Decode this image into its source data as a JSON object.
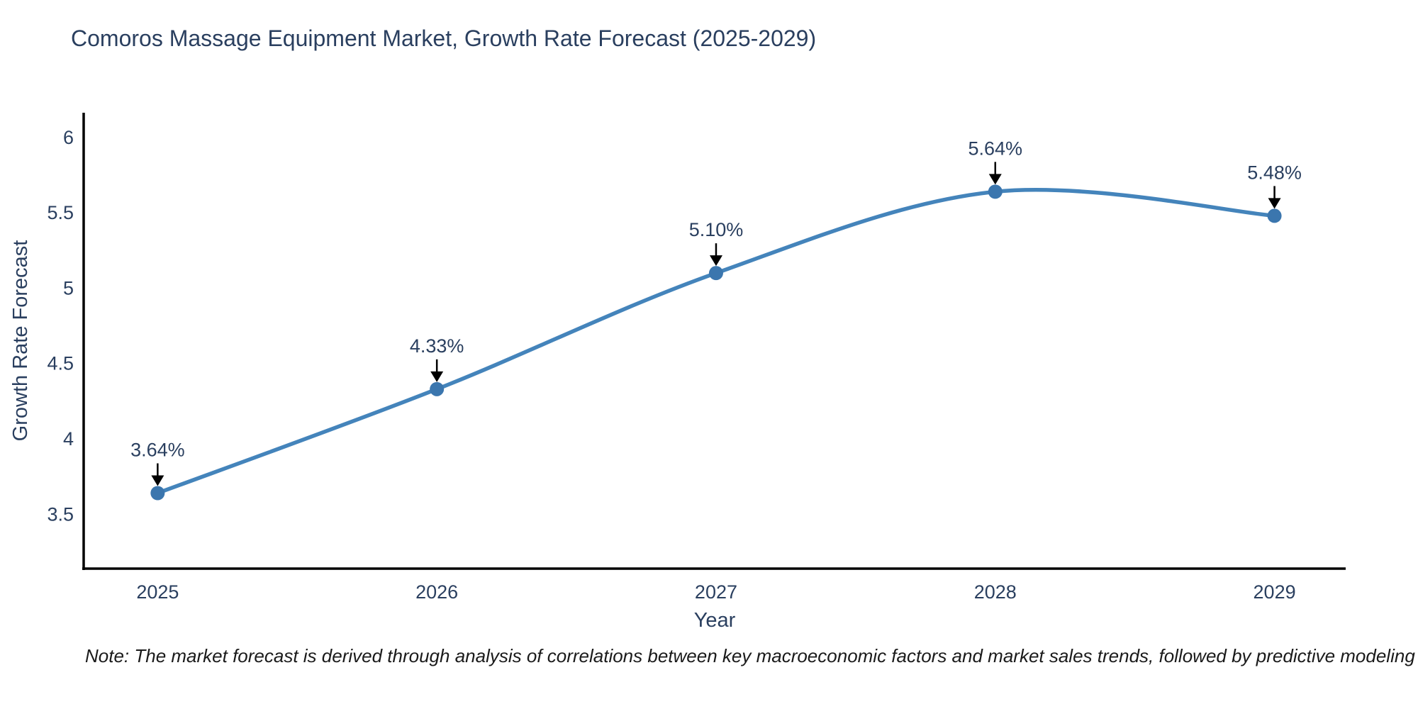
{
  "chart": {
    "title": "Comoros Massage Equipment Market, Growth Rate Forecast (2025-2029)"
  },
  "note": {
    "text": "Note: The market forecast is derived through analysis of correlations between key macroeconomic factors and market sales trends, followed by predictive modeling to project future sales"
  },
  "chart_data": {
    "type": "line",
    "title": "Comoros Massage Equipment Market, Growth Rate Forecast (2025-2029)",
    "x": [
      2025,
      2026,
      2027,
      2028,
      2029
    ],
    "x_tick_labels": [
      "2025",
      "2026",
      "2027",
      "2028",
      "2029"
    ],
    "series": [
      {
        "name": "Growth Rate Forecast",
        "values": [
          3.64,
          4.33,
          5.1,
          5.64,
          5.48
        ],
        "point_labels": [
          "3.64%",
          "4.33%",
          "5.10%",
          "5.64%",
          "5.48%"
        ]
      }
    ],
    "xlabel": "Year",
    "ylabel": "Growth Rate Forecast",
    "y_ticks": [
      3.5,
      4,
      4.5,
      5,
      5.5,
      6
    ],
    "y_tick_labels": [
      "3.5",
      "4",
      "4.5",
      "5",
      "5.5",
      "6"
    ],
    "xlim": [
      2024.735,
      2029.255
    ],
    "ylim": [
      3.139,
      6.164
    ],
    "line_shape": "spline",
    "grid": false,
    "legend_position": "none",
    "annotations_have_arrows": true,
    "colors": {
      "line": "#4484bb",
      "marker": "#3b76ae",
      "arrow": "#000000",
      "axis_line": "#000000",
      "chart_text": "#2a3f5f",
      "note_text": "#1a1a1a",
      "background": "#ffffff"
    }
  }
}
